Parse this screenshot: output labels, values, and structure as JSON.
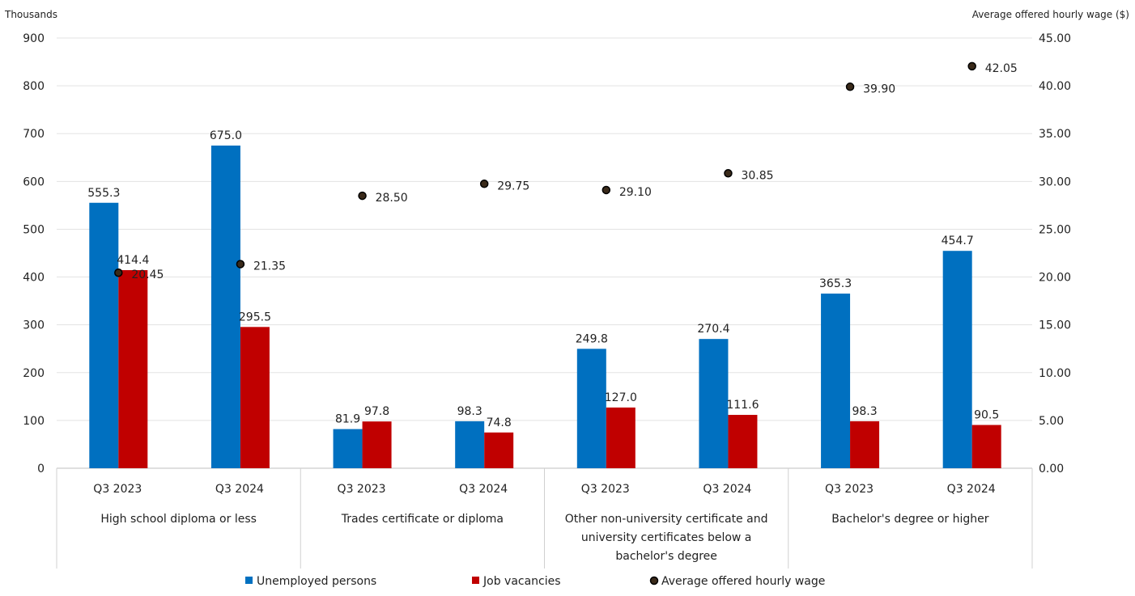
{
  "chart_data": {
    "type": "bar",
    "left_axis_label": "Thousands",
    "right_axis_label": "Average offered hourly wage ($)",
    "ylim": [
      0,
      900
    ],
    "y_ticks": [
      "0",
      "100",
      "200",
      "300",
      "400",
      "500",
      "600",
      "700",
      "800",
      "900"
    ],
    "y2lim": [
      0,
      45
    ],
    "y2_ticks": [
      "0.00",
      "5.00",
      "10.00",
      "15.00",
      "20.00",
      "25.00",
      "30.00",
      "35.00",
      "40.00",
      "45.00"
    ],
    "grid": true,
    "groups": [
      {
        "label": "High school diploma or less",
        "lines": [
          "High school diploma or less"
        ]
      },
      {
        "label": "Trades certificate or diploma",
        "lines": [
          "Trades certificate or diploma"
        ]
      },
      {
        "label": "Other non-university certificate and university certificates below a bachelor's degree",
        "lines": [
          "Other non-university certificate and",
          "university certificates below a",
          "bachelor's degree"
        ]
      },
      {
        "label": "Bachelor's degree or higher",
        "lines": [
          "Bachelor's degree or higher"
        ]
      }
    ],
    "categories": [
      "Q3 2023",
      "Q3 2024",
      "Q3 2023",
      "Q3 2024",
      "Q3 2023",
      "Q3 2024",
      "Q3 2023",
      "Q3 2024"
    ],
    "series": [
      {
        "name": "Unemployed persons",
        "type": "bar",
        "axis": "left",
        "color": "#0070c0",
        "values": [
          555.3,
          675.0,
          81.9,
          98.3,
          249.8,
          270.4,
          365.3,
          454.7
        ],
        "labels": [
          "555.3",
          "675.0",
          "81.9",
          "98.3",
          "249.8",
          "270.4",
          "365.3",
          "454.7"
        ]
      },
      {
        "name": "Job vacancies",
        "type": "bar",
        "axis": "left",
        "color": "#c00000",
        "values": [
          414.4,
          295.5,
          97.8,
          74.8,
          127.0,
          111.6,
          98.3,
          90.5
        ],
        "labels": [
          "414.4",
          "295.5",
          "97.8",
          "74.8",
          "127.0",
          "111.6",
          "98.3",
          "90.5"
        ]
      },
      {
        "name": "Average offered hourly wage",
        "type": "scatter",
        "axis": "right",
        "color": "#1a1a1a",
        "values": [
          20.45,
          21.35,
          28.5,
          29.75,
          29.1,
          30.85,
          39.9,
          42.05
        ],
        "labels": [
          "20.45",
          "21.35",
          "28.50",
          "29.75",
          "29.10",
          "30.85",
          "39.90",
          "42.05"
        ]
      }
    ],
    "legend_position": "bottom"
  }
}
